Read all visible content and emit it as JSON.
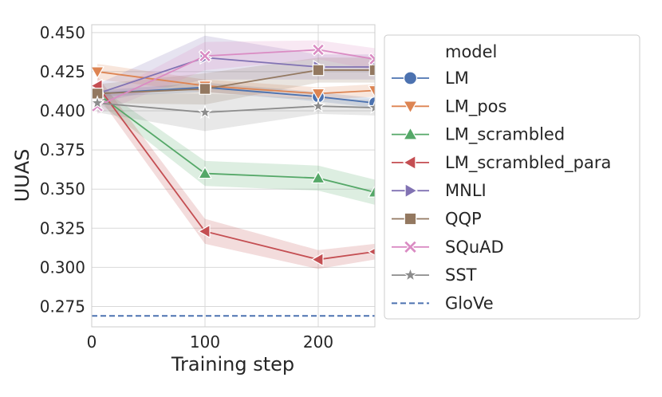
{
  "chart_data": {
    "type": "line",
    "title": "",
    "xlabel": "Training step",
    "ylabel": "UUAS",
    "xlim": [
      0,
      250
    ],
    "ylim": [
      0.262,
      0.455
    ],
    "xticks": [
      0,
      100,
      200
    ],
    "xtick_labels": [
      "0",
      "100",
      "200"
    ],
    "yticks": [
      0.275,
      0.3,
      0.325,
      0.35,
      0.375,
      0.4,
      0.425,
      0.45
    ],
    "ytick_labels": [
      "0.275",
      "0.300",
      "0.325",
      "0.350",
      "0.375",
      "0.400",
      "0.425",
      "0.450"
    ],
    "grid": true,
    "legend_position": "outside-right",
    "legend_title": "model",
    "x": [
      5,
      100,
      200,
      250
    ],
    "series": [
      {
        "name": "LM",
        "color": "#4c72b0",
        "marker": "circle",
        "values": [
          0.411,
          0.415,
          0.409,
          0.405
        ],
        "band": [
          [
            0.409,
            0.413
          ],
          [
            0.412,
            0.418
          ],
          [
            0.406,
            0.412
          ],
          [
            0.402,
            0.408
          ]
        ]
      },
      {
        "name": "LM_pos",
        "color": "#dd8452",
        "marker": "triangle-down",
        "values": [
          0.425,
          0.416,
          0.411,
          0.413
        ],
        "band": [
          [
            0.42,
            0.43
          ],
          [
            0.412,
            0.42
          ],
          [
            0.407,
            0.415
          ],
          [
            0.409,
            0.417
          ]
        ]
      },
      {
        "name": "LM_scrambled",
        "color": "#55a868",
        "marker": "triangle-up",
        "values": [
          0.411,
          0.36,
          0.357,
          0.348
        ],
        "band": [
          [
            0.406,
            0.416
          ],
          [
            0.352,
            0.368
          ],
          [
            0.349,
            0.365
          ],
          [
            0.34,
            0.356
          ]
        ]
      },
      {
        "name": "LM_scrambled_para",
        "color": "#c44e52",
        "marker": "triangle-left",
        "values": [
          0.416,
          0.323,
          0.305,
          0.31
        ],
        "band": [
          [
            0.41,
            0.422
          ],
          [
            0.315,
            0.331
          ],
          [
            0.299,
            0.311
          ],
          [
            0.305,
            0.315
          ]
        ]
      },
      {
        "name": "MNLI",
        "color": "#8172b3",
        "marker": "triangle-right",
        "values": [
          0.411,
          0.434,
          0.428,
          0.428
        ],
        "band": [
          [
            0.405,
            0.417
          ],
          [
            0.42,
            0.448
          ],
          [
            0.42,
            0.436
          ],
          [
            0.42,
            0.436
          ]
        ]
      },
      {
        "name": "QQP",
        "color": "#937860",
        "marker": "square",
        "values": [
          0.411,
          0.414,
          0.426,
          0.426
        ],
        "band": [
          [
            0.405,
            0.417
          ],
          [
            0.404,
            0.424
          ],
          [
            0.418,
            0.434
          ],
          [
            0.418,
            0.434
          ]
        ]
      },
      {
        "name": "SQuAD",
        "color": "#da8bc3",
        "marker": "x",
        "values": [
          0.403,
          0.435,
          0.439,
          0.433
        ],
        "band": [
          [
            0.398,
            0.408
          ],
          [
            0.426,
            0.444
          ],
          [
            0.433,
            0.445
          ],
          [
            0.426,
            0.44
          ]
        ]
      },
      {
        "name": "SST",
        "color": "#8c8c8c",
        "marker": "star",
        "values": [
          0.405,
          0.399,
          0.403,
          0.402
        ],
        "band": [
          [
            0.399,
            0.411
          ],
          [
            0.387,
            0.411
          ],
          [
            0.398,
            0.408
          ],
          [
            0.397,
            0.407
          ]
        ]
      },
      {
        "name": "GloVe",
        "color": "#4c72b0",
        "marker": "none",
        "dashed": true,
        "values": [
          0.269,
          0.269,
          0.269,
          0.269
        ]
      }
    ]
  }
}
